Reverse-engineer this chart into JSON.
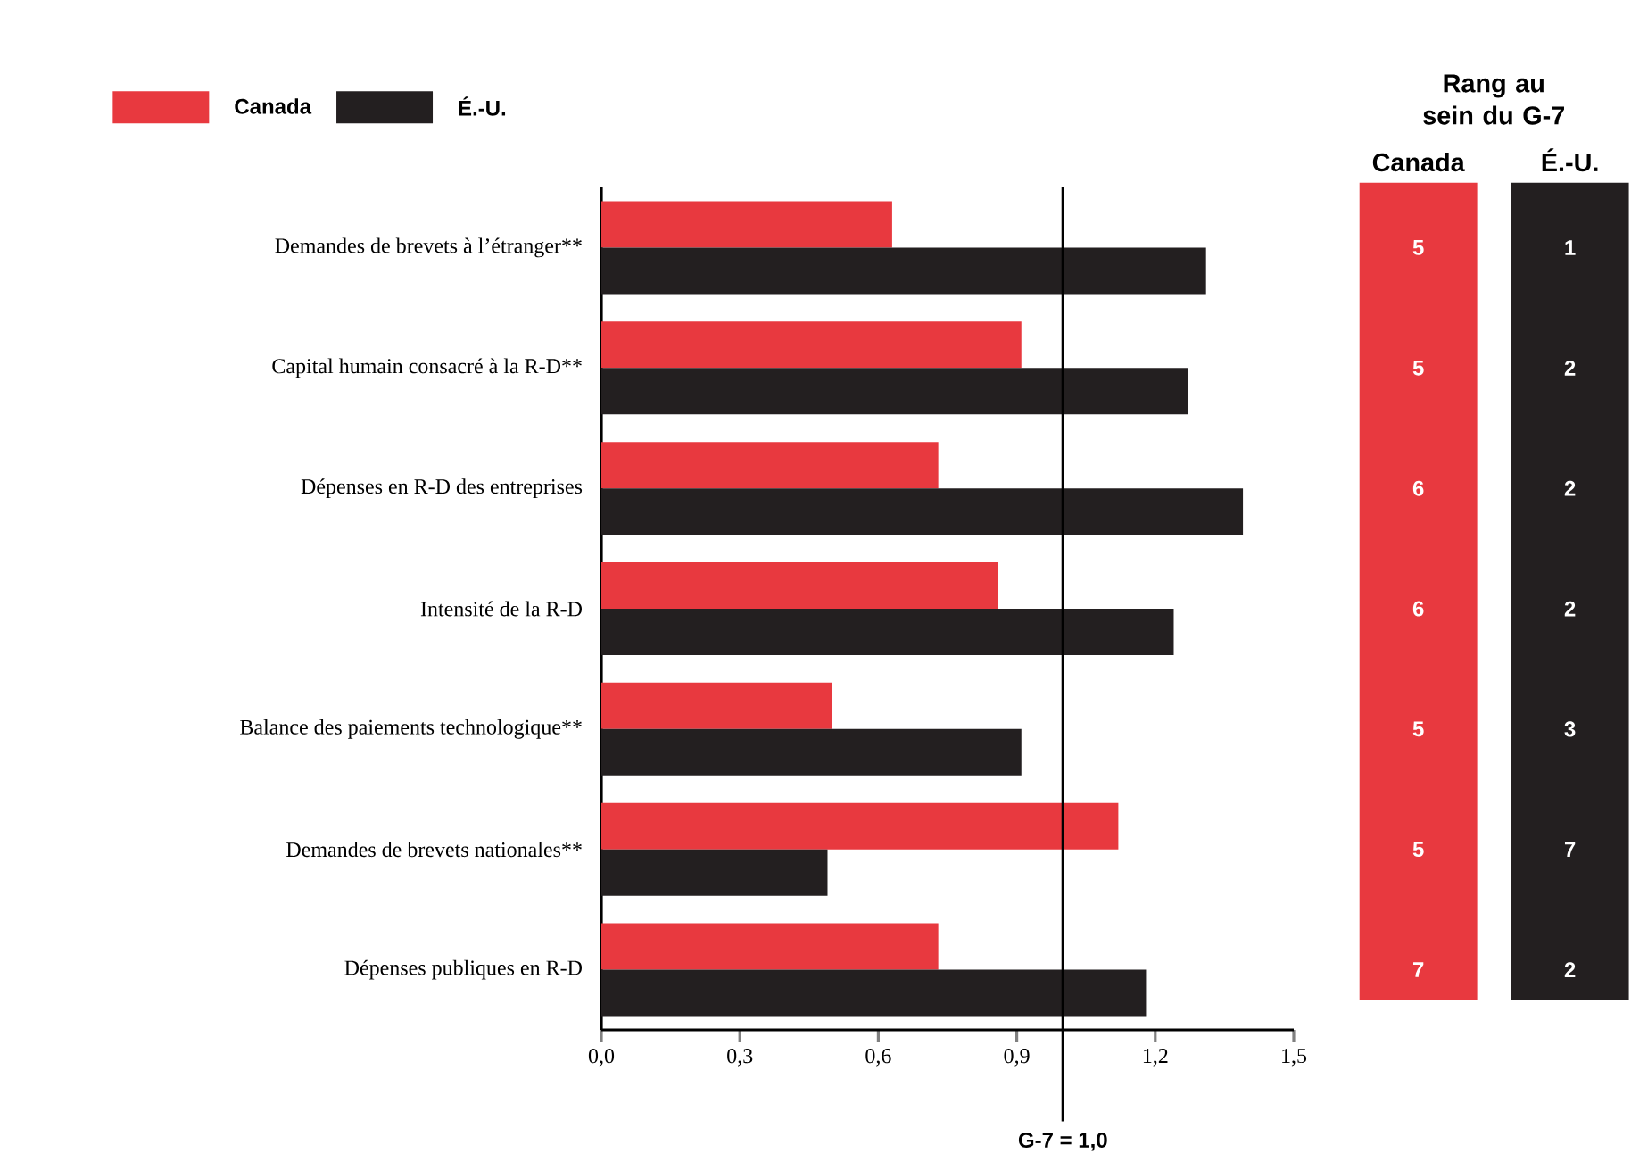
{
  "chart_data": {
    "type": "bar",
    "orientation": "horizontal",
    "categories": [
      "Demandes de brevets à l’étranger**",
      "Capital humain consacré à la R-D**",
      "Dépenses en R-D des entreprises",
      "Intensité de la R-D",
      "Balance des paiements technologique**",
      "Demandes de brevets nationales**",
      "Dépenses publiques en R-D"
    ],
    "series": [
      {
        "name": "Canada",
        "color": "#e8393f",
        "values": [
          0.63,
          0.91,
          0.73,
          0.86,
          0.5,
          1.12,
          0.73
        ]
      },
      {
        "name": "É.-U.",
        "color": "#231f20",
        "values": [
          1.31,
          1.27,
          1.39,
          1.24,
          0.91,
          0.49,
          1.18
        ]
      }
    ],
    "xlim": [
      0,
      1.5
    ],
    "xticks": [
      {
        "value": 0,
        "label": "0,0"
      },
      {
        "value": 0.3,
        "label": "0,3"
      },
      {
        "value": 0.6,
        "label": "0,6"
      },
      {
        "value": 0.9,
        "label": "0,9"
      },
      {
        "value": 1.2,
        "label": "1,2"
      },
      {
        "value": 1.5,
        "label": "1,5"
      }
    ],
    "ref_lines": [
      {
        "axis": "x",
        "value": 1.0,
        "label": "G-7 = 1,0"
      }
    ],
    "legend": "top left",
    "annotations": [
      "Rang au sein du G-7",
      "5",
      "5",
      "6",
      "6",
      "5",
      "5",
      "7",
      "1",
      "2",
      "2",
      "2",
      "3",
      "7",
      "2"
    ]
  }
}
